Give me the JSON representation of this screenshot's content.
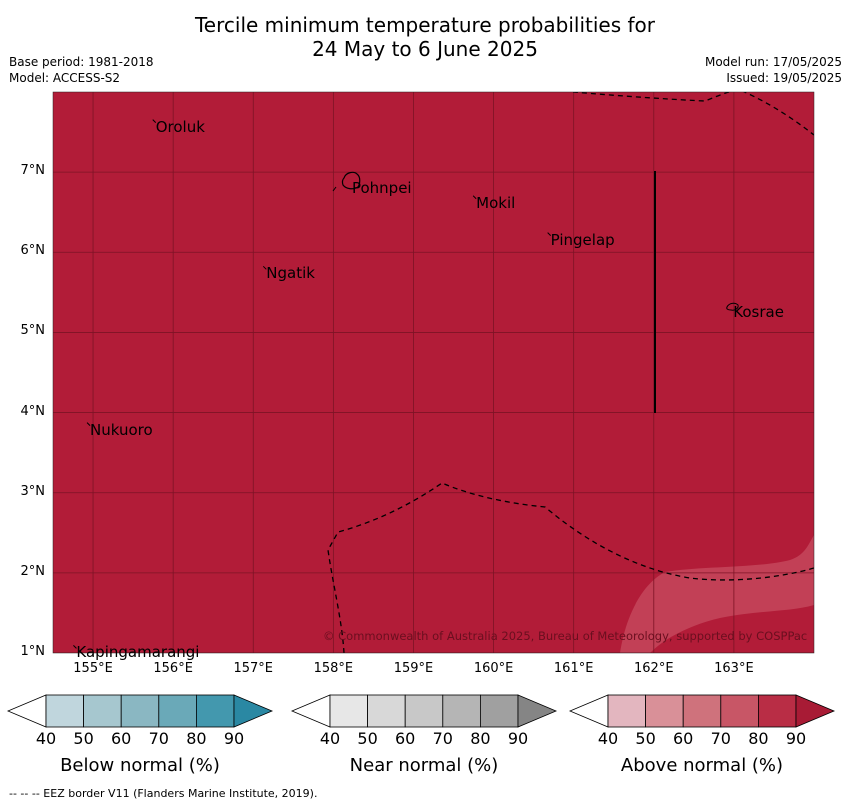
{
  "title_line1": "Tercile minimum temperature probabilities for",
  "title_line2": "24 May to 6 June 2025",
  "base_period": "Base period: 1981-2018",
  "model": "Model: ACCESS-S2",
  "model_run": "Model run: 17/05/2025",
  "issued": "Issued: 19/05/2025",
  "copyright": "© Commonwealth of Australia 2025, Bureau of Meteorology, supported by COSPPac",
  "footer": "--  --  -- EEZ border V11 (Flanders Marine Institute, 2019).",
  "colors": {
    "above_90": "#b21c38",
    "above_80": "#c4465c",
    "highlight": "#c4465c",
    "grid": "#7d1325",
    "eez": "#000000",
    "map_bg": "#b21c38"
  },
  "places": [
    {
      "name": "Oroluk",
      "lon": 155.77,
      "lat": 7.63
    },
    {
      "name": "Pohnpei",
      "lon": 158.22,
      "lat": 6.87
    },
    {
      "name": "Mokil",
      "lon": 159.77,
      "lat": 6.68
    },
    {
      "name": "Pingelap",
      "lon": 160.7,
      "lat": 6.22
    },
    {
      "name": "Ngatik",
      "lon": 157.15,
      "lat": 5.8
    },
    {
      "name": "Kosrae",
      "lon": 162.98,
      "lat": 5.32
    },
    {
      "name": "Nukuoro",
      "lon": 154.95,
      "lat": 3.85
    },
    {
      "name": "Kapingamarangi",
      "lon": 154.78,
      "lat": 1.07
    }
  ],
  "lon_ticks": [
    "155°E",
    "156°E",
    "157°E",
    "158°E",
    "159°E",
    "160°E",
    "161°E",
    "162°E",
    "163°E"
  ],
  "lat_ticks": [
    "7°N",
    "6°N",
    "5°N",
    "4°N",
    "3°N",
    "2°N",
    "1°N"
  ],
  "extent": {
    "lon_min": 154.5,
    "lon_max": 164.0,
    "lat_min": 1.0,
    "lat_max": 8.0
  },
  "colorbars": [
    {
      "label": "Below normal (%)",
      "ticks": [
        "40",
        "50",
        "60",
        "70",
        "80",
        "90"
      ],
      "colors": [
        "#ffffff",
        "#c0d6dd",
        "#a6c7cf",
        "#8ab7c2",
        "#6aa9b8",
        "#4398ae",
        "#2a88a3"
      ]
    },
    {
      "label": "Near normal (%)",
      "ticks": [
        "40",
        "50",
        "60",
        "70",
        "80",
        "90"
      ],
      "colors": [
        "#ffffff",
        "#e7e7e7",
        "#d8d8d8",
        "#c8c8c8",
        "#b5b5b5",
        "#a0a0a0",
        "#858585"
      ]
    },
    {
      "label": "Above normal (%)",
      "ticks": [
        "40",
        "50",
        "60",
        "70",
        "80",
        "90"
      ],
      "colors": [
        "#ffffff",
        "#e3b6bf",
        "#d99098",
        "#cf727c",
        "#c85666",
        "#b92d45",
        "#a81b35"
      ]
    }
  ]
}
